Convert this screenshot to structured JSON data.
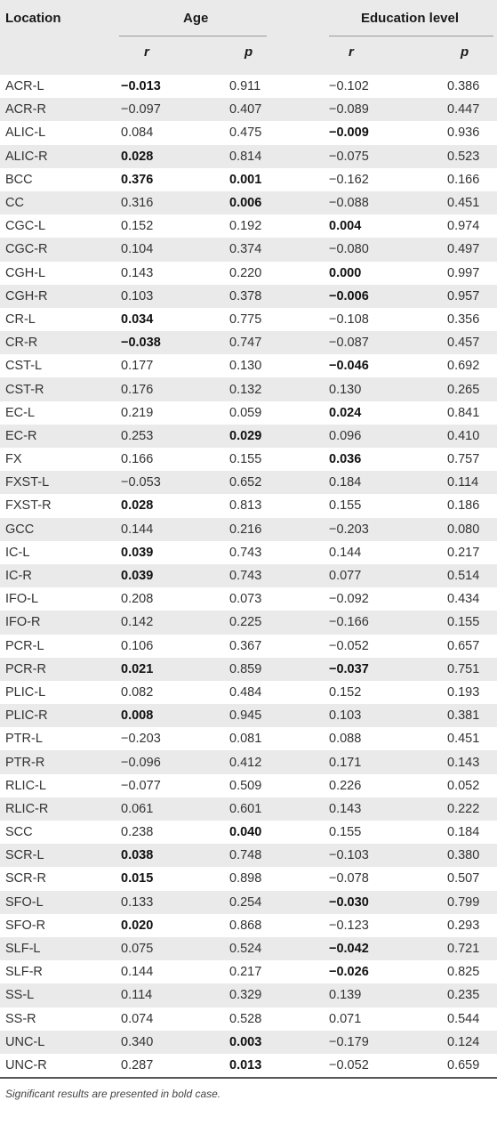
{
  "header": {
    "location": "Location",
    "age": "Age",
    "education": "Education level",
    "sub": [
      "r",
      "p",
      "r",
      "p"
    ]
  },
  "rows": [
    {
      "loc": "ACR-L",
      "v": [
        "−0.013",
        "0.911",
        "−0.102",
        "0.386"
      ],
      "bold": [
        true,
        false,
        false,
        false
      ]
    },
    {
      "loc": "ACR-R",
      "v": [
        "−0.097",
        "0.407",
        "−0.089",
        "0.447"
      ],
      "bold": [
        false,
        false,
        false,
        false
      ]
    },
    {
      "loc": "ALIC-L",
      "v": [
        "0.084",
        "0.475",
        "−0.009",
        "0.936"
      ],
      "bold": [
        false,
        false,
        true,
        false
      ]
    },
    {
      "loc": "ALIC-R",
      "v": [
        "0.028",
        "0.814",
        "−0.075",
        "0.523"
      ],
      "bold": [
        true,
        false,
        false,
        false
      ]
    },
    {
      "loc": "BCC",
      "v": [
        "0.376",
        "0.001",
        "−0.162",
        "0.166"
      ],
      "bold": [
        true,
        true,
        false,
        false
      ]
    },
    {
      "loc": "CC",
      "v": [
        "0.316",
        "0.006",
        "−0.088",
        "0.451"
      ],
      "bold": [
        false,
        true,
        false,
        false
      ]
    },
    {
      "loc": "CGC-L",
      "v": [
        "0.152",
        "0.192",
        "0.004",
        "0.974"
      ],
      "bold": [
        false,
        false,
        true,
        false
      ]
    },
    {
      "loc": "CGC-R",
      "v": [
        "0.104",
        "0.374",
        "−0.080",
        "0.497"
      ],
      "bold": [
        false,
        false,
        false,
        false
      ]
    },
    {
      "loc": "CGH-L",
      "v": [
        "0.143",
        "0.220",
        "0.000",
        "0.997"
      ],
      "bold": [
        false,
        false,
        true,
        false
      ]
    },
    {
      "loc": "CGH-R",
      "v": [
        "0.103",
        "0.378",
        "−0.006",
        "0.957"
      ],
      "bold": [
        false,
        false,
        true,
        false
      ]
    },
    {
      "loc": "CR-L",
      "v": [
        "0.034",
        "0.775",
        "−0.108",
        "0.356"
      ],
      "bold": [
        true,
        false,
        false,
        false
      ]
    },
    {
      "loc": "CR-R",
      "v": [
        "−0.038",
        "0.747",
        "−0.087",
        "0.457"
      ],
      "bold": [
        true,
        false,
        false,
        false
      ]
    },
    {
      "loc": "CST-L",
      "v": [
        "0.177",
        "0.130",
        "−0.046",
        "0.692"
      ],
      "bold": [
        false,
        false,
        true,
        false
      ]
    },
    {
      "loc": "CST-R",
      "v": [
        "0.176",
        "0.132",
        "0.130",
        "0.265"
      ],
      "bold": [
        false,
        false,
        false,
        false
      ]
    },
    {
      "loc": "EC-L",
      "v": [
        "0.219",
        "0.059",
        "0.024",
        "0.841"
      ],
      "bold": [
        false,
        false,
        true,
        false
      ]
    },
    {
      "loc": "EC-R",
      "v": [
        "0.253",
        "0.029",
        "0.096",
        "0.410"
      ],
      "bold": [
        false,
        true,
        false,
        false
      ]
    },
    {
      "loc": "FX",
      "v": [
        "0.166",
        "0.155",
        "0.036",
        "0.757"
      ],
      "bold": [
        false,
        false,
        true,
        false
      ]
    },
    {
      "loc": "FXST-L",
      "v": [
        "−0.053",
        "0.652",
        "0.184",
        "0.114"
      ],
      "bold": [
        false,
        false,
        false,
        false
      ]
    },
    {
      "loc": "FXST-R",
      "v": [
        "0.028",
        "0.813",
        "0.155",
        "0.186"
      ],
      "bold": [
        true,
        false,
        false,
        false
      ]
    },
    {
      "loc": "GCC",
      "v": [
        "0.144",
        "0.216",
        "−0.203",
        "0.080"
      ],
      "bold": [
        false,
        false,
        false,
        false
      ]
    },
    {
      "loc": "IC-L",
      "v": [
        "0.039",
        "0.743",
        "0.144",
        "0.217"
      ],
      "bold": [
        true,
        false,
        false,
        false
      ]
    },
    {
      "loc": "IC-R",
      "v": [
        "0.039",
        "0.743",
        "0.077",
        "0.514"
      ],
      "bold": [
        true,
        false,
        false,
        false
      ]
    },
    {
      "loc": "IFO-L",
      "v": [
        "0.208",
        "0.073",
        "−0.092",
        "0.434"
      ],
      "bold": [
        false,
        false,
        false,
        false
      ]
    },
    {
      "loc": "IFO-R",
      "v": [
        "0.142",
        "0.225",
        "−0.166",
        "0.155"
      ],
      "bold": [
        false,
        false,
        false,
        false
      ]
    },
    {
      "loc": "PCR-L",
      "v": [
        "0.106",
        "0.367",
        "−0.052",
        "0.657"
      ],
      "bold": [
        false,
        false,
        false,
        false
      ]
    },
    {
      "loc": "PCR-R",
      "v": [
        "0.021",
        "0.859",
        "−0.037",
        "0.751"
      ],
      "bold": [
        true,
        false,
        true,
        false
      ]
    },
    {
      "loc": "PLIC-L",
      "v": [
        "0.082",
        "0.484",
        "0.152",
        "0.193"
      ],
      "bold": [
        false,
        false,
        false,
        false
      ]
    },
    {
      "loc": "PLIC-R",
      "v": [
        "0.008",
        "0.945",
        "0.103",
        "0.381"
      ],
      "bold": [
        true,
        false,
        false,
        false
      ]
    },
    {
      "loc": "PTR-L",
      "v": [
        "−0.203",
        "0.081",
        "0.088",
        "0.451"
      ],
      "bold": [
        false,
        false,
        false,
        false
      ]
    },
    {
      "loc": "PTR-R",
      "v": [
        "−0.096",
        "0.412",
        "0.171",
        "0.143"
      ],
      "bold": [
        false,
        false,
        false,
        false
      ]
    },
    {
      "loc": "RLIC-L",
      "v": [
        "−0.077",
        "0.509",
        "0.226",
        "0.052"
      ],
      "bold": [
        false,
        false,
        false,
        false
      ]
    },
    {
      "loc": "RLIC-R",
      "v": [
        "0.061",
        "0.601",
        "0.143",
        "0.222"
      ],
      "bold": [
        false,
        false,
        false,
        false
      ]
    },
    {
      "loc": "SCC",
      "v": [
        "0.238",
        "0.040",
        "0.155",
        "0.184"
      ],
      "bold": [
        false,
        true,
        false,
        false
      ]
    },
    {
      "loc": "SCR-L",
      "v": [
        "0.038",
        "0.748",
        "−0.103",
        "0.380"
      ],
      "bold": [
        true,
        false,
        false,
        false
      ]
    },
    {
      "loc": "SCR-R",
      "v": [
        "0.015",
        "0.898",
        "−0.078",
        "0.507"
      ],
      "bold": [
        true,
        false,
        false,
        false
      ]
    },
    {
      "loc": "SFO-L",
      "v": [
        "0.133",
        "0.254",
        "−0.030",
        "0.799"
      ],
      "bold": [
        false,
        false,
        true,
        false
      ]
    },
    {
      "loc": "SFO-R",
      "v": [
        "0.020",
        "0.868",
        "−0.123",
        "0.293"
      ],
      "bold": [
        true,
        false,
        false,
        false
      ]
    },
    {
      "loc": "SLF-L",
      "v": [
        "0.075",
        "0.524",
        "−0.042",
        "0.721"
      ],
      "bold": [
        false,
        false,
        true,
        false
      ]
    },
    {
      "loc": "SLF-R",
      "v": [
        "0.144",
        "0.217",
        "−0.026",
        "0.825"
      ],
      "bold": [
        false,
        false,
        true,
        false
      ]
    },
    {
      "loc": "SS-L",
      "v": [
        "0.114",
        "0.329",
        "0.139",
        "0.235"
      ],
      "bold": [
        false,
        false,
        false,
        false
      ]
    },
    {
      "loc": "SS-R",
      "v": [
        "0.074",
        "0.528",
        "0.071",
        "0.544"
      ],
      "bold": [
        false,
        false,
        false,
        false
      ]
    },
    {
      "loc": "UNC-L",
      "v": [
        "0.340",
        "0.003",
        "−0.179",
        "0.124"
      ],
      "bold": [
        false,
        true,
        false,
        false
      ]
    },
    {
      "loc": "UNC-R",
      "v": [
        "0.287",
        "0.013",
        "−0.052",
        "0.659"
      ],
      "bold": [
        false,
        true,
        false,
        false
      ]
    }
  ],
  "footnote": "Significant results are presented in bold case."
}
